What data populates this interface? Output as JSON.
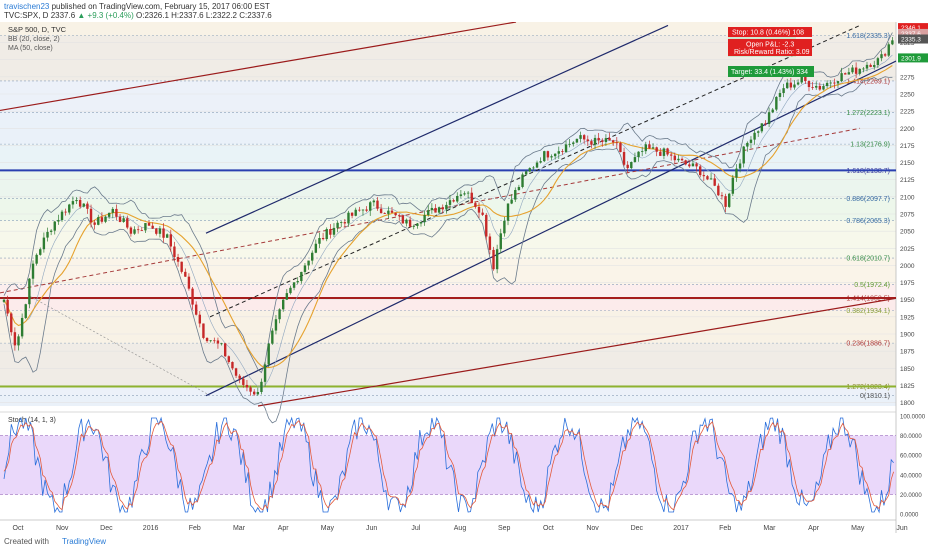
{
  "header": {
    "author": "travischen23",
    "published_text": "published on TradingView.com, February 15, 2017 06:00 EST",
    "symbol_line": "TVC:SPX, D",
    "last": "2337.6",
    "change": "▲ +9.3 (+0.4%)",
    "ohlc": "O:2326.1 H:2337.6 L:2322.2 C:2337.6"
  },
  "legend": {
    "title": "S&P 500, D, TVC",
    "bb": "BB (20, close, 2)",
    "ma": "MA (50, close)"
  },
  "footer": {
    "created": "Created with",
    "brand": "TradingView"
  },
  "colors": {
    "price_up": "#2e7d32",
    "price_down": "#c62828",
    "bb": "#6b7b8c",
    "ma": "#e6a22e",
    "channel": "#1f2a6b",
    "red_channel": "#9b1b1b",
    "stoch_k": "#2a6fdb",
    "stoch_d": "#e35b3c",
    "stoch_band": "#d9b8f5"
  },
  "chart_data": {
    "type": "candlestick",
    "ylim": [
      1795,
      2355
    ],
    "y_ticks": [
      1800,
      1825,
      1850,
      1875,
      1900,
      1925,
      1950,
      1975,
      2000,
      2025,
      2050,
      2075,
      2100,
      2125,
      2150,
      2175,
      2200,
      2225,
      2250,
      2275,
      2300,
      2325
    ],
    "x_ticks": [
      "Oct",
      "Nov",
      "Dec",
      "2016",
      "Feb",
      "Mar",
      "Apr",
      "May",
      "Jun",
      "Jul",
      "Aug",
      "Sep",
      "Oct",
      "Nov",
      "Dec",
      "2017",
      "Feb",
      "Mar",
      "Apr",
      "May",
      "Jun"
    ],
    "fib_levels": [
      {
        "label": "1.618(2335.3)",
        "value": 2335.3
      },
      {
        "label": "1.414(2269.1)",
        "value": 2269.1
      },
      {
        "label": "1.272(2223.1)",
        "value": 2223.1
      },
      {
        "label": "1.13(2176.9)",
        "value": 2176.9
      },
      {
        "label": "1.618(2138.7)",
        "value": 2138.7
      },
      {
        "label": "0.886(2097.7)",
        "value": 2097.7
      },
      {
        "label": "0.786(2065.3)",
        "value": 2065.3
      },
      {
        "label": "0.618(2010.7)",
        "value": 2010.7
      },
      {
        "label": "0.5(1972.4)",
        "value": 1972.4
      },
      {
        "label": "1.414(1952.5)",
        "value": 1952.5
      },
      {
        "label": "0.382(1934.1)",
        "value": 1934.1
      },
      {
        "label": "0.236(1886.7)",
        "value": 1886.7
      },
      {
        "label": "1.272(1823.4)",
        "value": 1823.4
      },
      {
        "label": "0(1810.1)",
        "value": 1810.1
      }
    ],
    "price_path": [
      [
        0,
        1950
      ],
      [
        10,
        1880
      ],
      [
        25,
        2010
      ],
      [
        40,
        2060
      ],
      [
        60,
        2100
      ],
      [
        75,
        2060
      ],
      [
        90,
        2080
      ],
      [
        105,
        2050
      ],
      [
        120,
        2060
      ],
      [
        135,
        2040
      ],
      [
        150,
        1980
      ],
      [
        165,
        1900
      ],
      [
        180,
        1880
      ],
      [
        195,
        1830
      ],
      [
        210,
        1812
      ],
      [
        220,
        1890
      ],
      [
        232,
        1950
      ],
      [
        245,
        1990
      ],
      [
        260,
        2035
      ],
      [
        275,
        2060
      ],
      [
        290,
        2075
      ],
      [
        305,
        2090
      ],
      [
        320,
        2075
      ],
      [
        335,
        2060
      ],
      [
        350,
        2075
      ],
      [
        365,
        2090
      ],
      [
        380,
        2110
      ],
      [
        395,
        2080
      ],
      [
        405,
        2000
      ],
      [
        415,
        2080
      ],
      [
        430,
        2130
      ],
      [
        445,
        2160
      ],
      [
        460,
        2170
      ],
      [
        475,
        2185
      ],
      [
        490,
        2180
      ],
      [
        505,
        2180
      ],
      [
        515,
        2140
      ],
      [
        530,
        2170
      ],
      [
        545,
        2165
      ],
      [
        560,
        2150
      ],
      [
        575,
        2140
      ],
      [
        590,
        2110
      ],
      [
        597,
        2090
      ],
      [
        605,
        2140
      ],
      [
        618,
        2190
      ],
      [
        630,
        2210
      ],
      [
        645,
        2260
      ],
      [
        660,
        2270
      ],
      [
        675,
        2260
      ],
      [
        690,
        2275
      ],
      [
        705,
        2285
      ],
      [
        715,
        2295
      ],
      [
        725,
        2300
      ],
      [
        737,
        2337.6
      ]
    ],
    "annotations": {
      "stop": "Stop: 10.8 (0.46%) 108",
      "open_pl": "Open P&L: -2.3",
      "risk_reward": "Risk/Reward Ratio: 3.09",
      "target": "Target: 33.4 (1.43%) 334",
      "price_tags": [
        "2346.1",
        "2337.6",
        "2335.3",
        "2301.9"
      ]
    },
    "stoch": {
      "label": "Stoch (14, 1, 3)",
      "ylim": [
        0,
        100
      ],
      "y_ticks": [
        "100.0000",
        "80.0000",
        "60.0000",
        "40.0000",
        "20.0000",
        "0.0000"
      ],
      "upper": 80,
      "lower": 20
    }
  }
}
